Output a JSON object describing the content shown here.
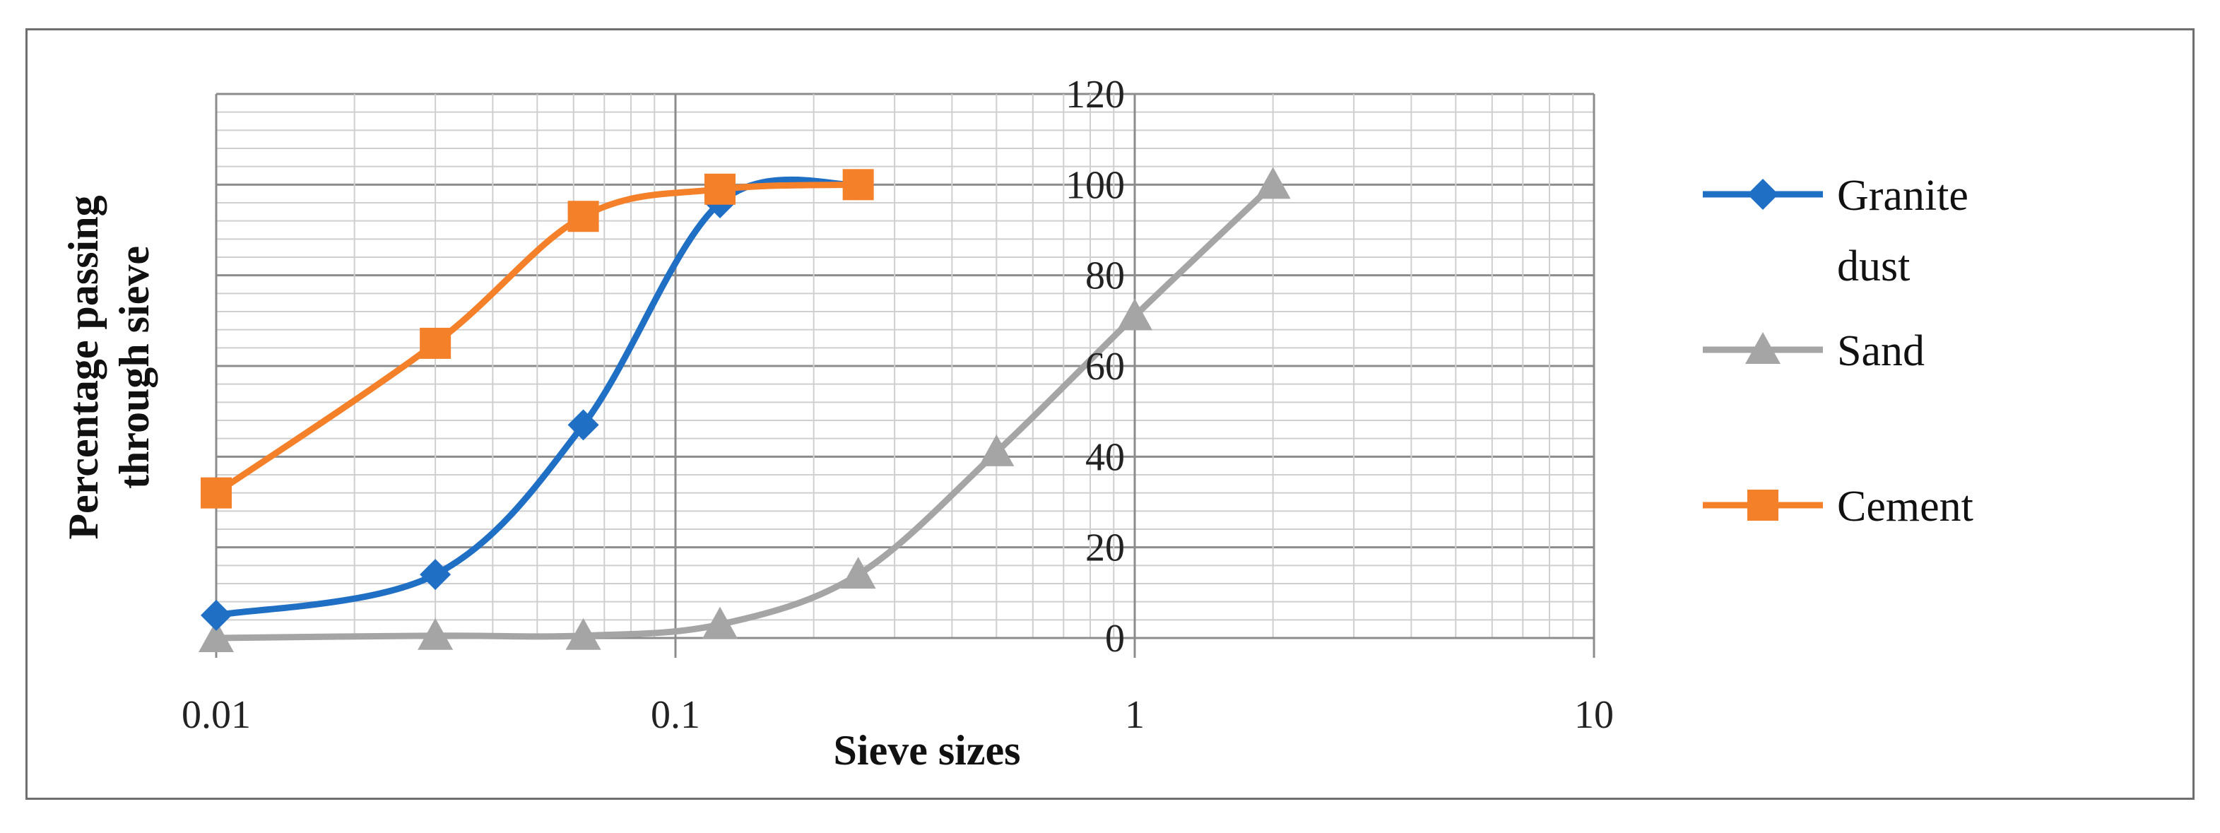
{
  "chart_data": {
    "type": "line",
    "title": "",
    "xlabel": "Sieve sizes",
    "ylabel": "Percentage passing through sieve",
    "ylabel_lines": [
      "Percentage passing",
      "through sieve"
    ],
    "x_scale": "log",
    "xlim": [
      0.01,
      10
    ],
    "ylim": [
      0,
      120
    ],
    "x_tick_labels": [
      "0.01",
      "0.1",
      "1",
      "10"
    ],
    "x_ticks": [
      0.01,
      0.1,
      1,
      10
    ],
    "y_tick_labels": [
      "0",
      "20",
      "40",
      "60",
      "80",
      "100",
      "120"
    ],
    "y_ticks": [
      0,
      20,
      40,
      60,
      80,
      100,
      120
    ],
    "grid": true,
    "legend_position": "right",
    "series": [
      {
        "name": "Granite dust",
        "name_lines": [
          "Granite",
          "dust"
        ],
        "marker": "diamond",
        "color": "#1F6FC5",
        "x": [
          0.01,
          0.03,
          0.063,
          0.125,
          0.25
        ],
        "y": [
          5,
          14,
          47,
          96,
          100
        ]
      },
      {
        "name": "Sand",
        "name_lines": [
          "Sand"
        ],
        "marker": "triangle",
        "color": "#A5A5A5",
        "x": [
          0.01,
          0.03,
          0.063,
          0.125,
          0.25,
          0.5,
          1,
          2
        ],
        "y": [
          0,
          0.5,
          0.5,
          3,
          14,
          41,
          71,
          100
        ]
      },
      {
        "name": "Cement",
        "name_lines": [
          "Cement"
        ],
        "marker": "square",
        "color": "#F4802A",
        "x": [
          0.01,
          0.03,
          0.063,
          0.125,
          0.25
        ],
        "y": [
          32,
          65,
          93,
          99,
          100
        ]
      }
    ]
  }
}
